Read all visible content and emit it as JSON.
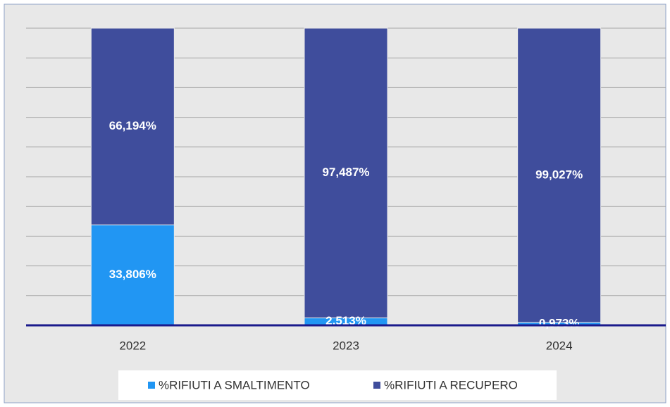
{
  "chart_data": {
    "type": "stacked_bar",
    "categories": [
      "2022",
      "2023",
      "2024"
    ],
    "series": [
      {
        "name": "%RIFIUTI A SMALTIMENTO",
        "color": "#2196f3",
        "values": [
          33.806,
          2.513,
          0.973
        ],
        "value_labels": [
          "33,806%",
          "2,513%",
          "0,973%"
        ]
      },
      {
        "name": "%RIFIUTI A RECUPERO",
        "color": "#3f4d9c",
        "values": [
          66.194,
          97.487,
          99.027
        ],
        "value_labels": [
          "66,194%",
          "97,487%",
          "99,027%"
        ]
      }
    ],
    "ylim": [
      0,
      100
    ],
    "yticks": [
      0,
      10,
      20,
      30,
      40,
      50,
      60,
      70,
      80,
      90,
      100
    ],
    "grid": true,
    "legend": "bottom"
  }
}
